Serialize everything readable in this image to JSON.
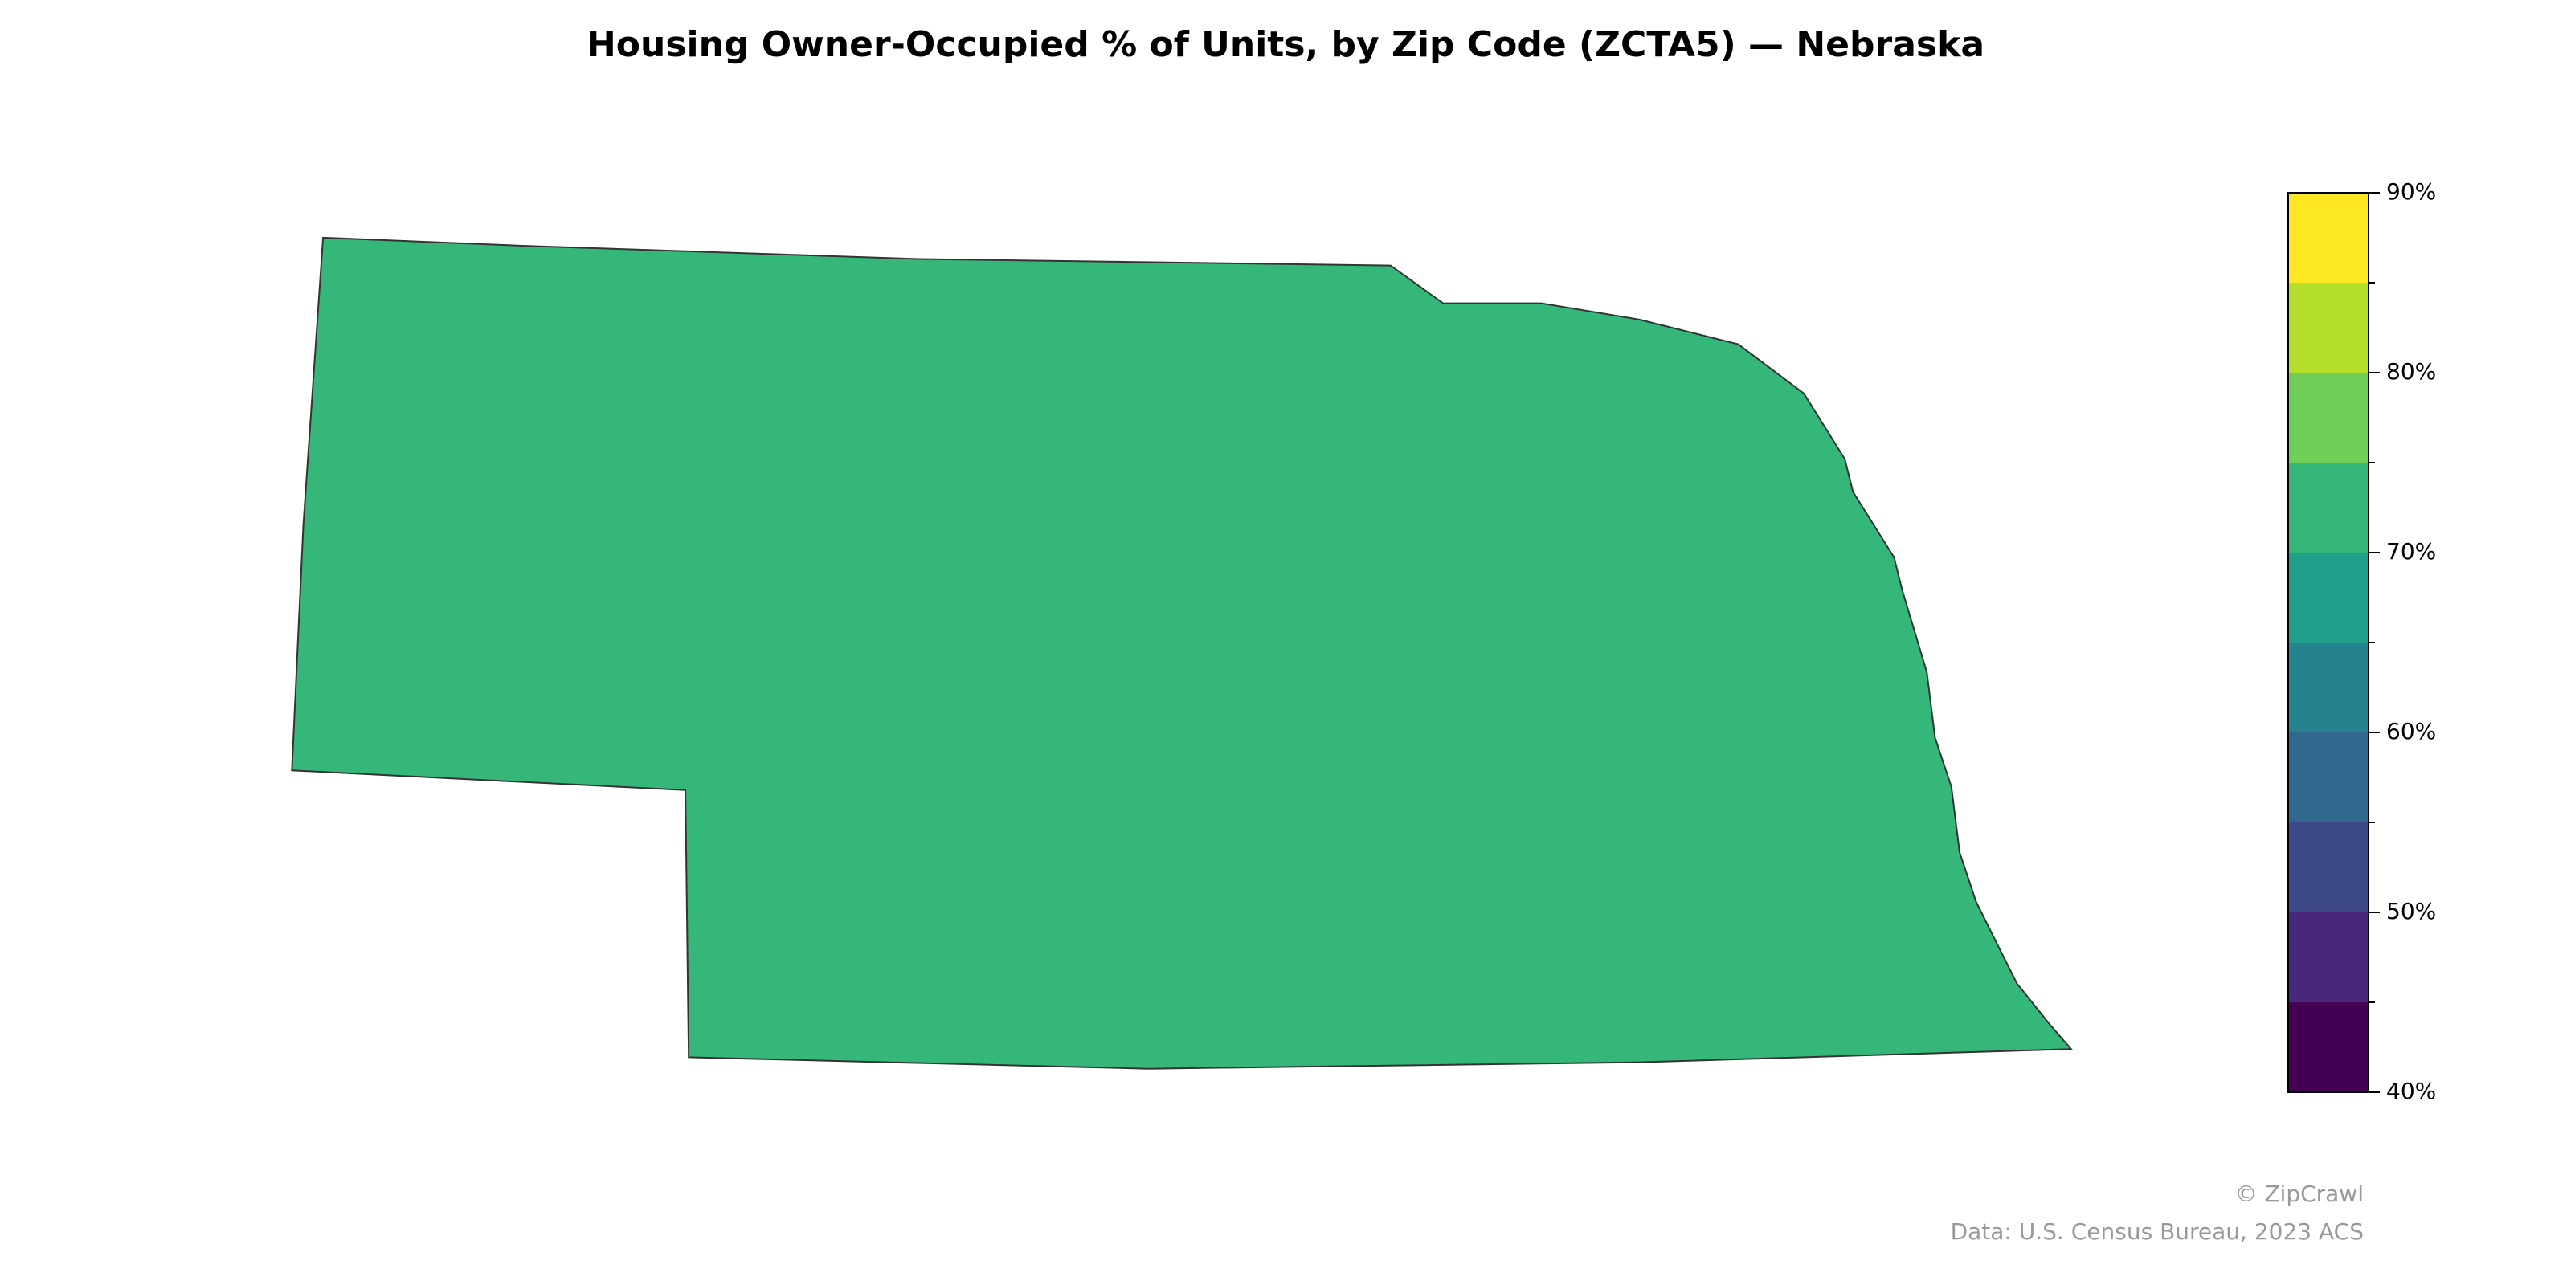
{
  "map": {
    "title": "Housing Owner-Occupied % of Units, by Zip Code (ZCTA5) — Nebraska",
    "region": "Nebraska",
    "colorbar": {
      "lim": [
        40,
        90
      ],
      "boundaries": [
        40,
        45,
        50,
        55,
        60,
        65,
        70,
        75,
        80,
        85,
        90
      ],
      "colors": [
        "#440154",
        "#482878",
        "#3e4989",
        "#31688e",
        "#26828e",
        "#1f9e89",
        "#35b779",
        "#6ece58",
        "#b5de2b",
        "#fde725"
      ],
      "ticks": [
        {
          "value": 40,
          "label": "40%"
        },
        {
          "value": 50,
          "label": "50%"
        },
        {
          "value": 60,
          "label": "60%"
        },
        {
          "value": 70,
          "label": "70%"
        },
        {
          "value": 80,
          "label": "80%"
        },
        {
          "value": 90,
          "label": "90%"
        }
      ]
    },
    "credit": "© ZipCrawl",
    "source": "Data: U.S. Census Bureau, 2023 ACS"
  }
}
